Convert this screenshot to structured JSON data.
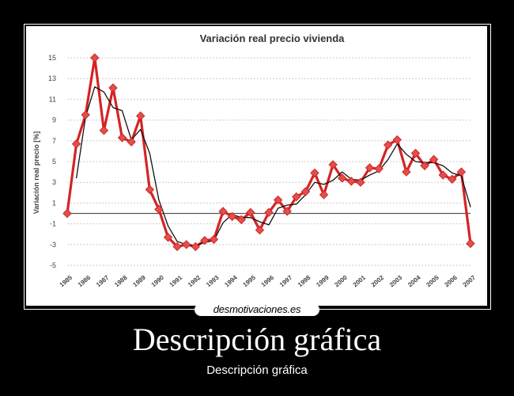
{
  "poster": {
    "site": "desmotivaciones.es",
    "title": "Descripción gráfica",
    "caption": "Descripción gráfica"
  },
  "chart_data": {
    "type": "line",
    "title": "Variación real precio vivienda",
    "ylabel": "Variación real precio [%]",
    "xlabel": "",
    "ylim": [
      -5,
      15
    ],
    "yticks": [
      15,
      13,
      11,
      9,
      7,
      5,
      3,
      1,
      -1,
      -3,
      -5
    ],
    "xlim": [
      1985,
      2007
    ],
    "xticks": [
      "1985",
      "1986",
      "1987",
      "1988",
      "1989",
      "1990",
      "1991",
      "1992",
      "1993",
      "1994",
      "1995",
      "1996",
      "1997",
      "1998",
      "1999",
      "2000",
      "2001",
      "2002",
      "2003",
      "2004",
      "2005",
      "2006",
      "2007"
    ],
    "grid": true,
    "series": [
      {
        "color": "#d42424",
        "marker": "diamond",
        "x": [
          1985,
          1985.5,
          1986,
          1986.5,
          1987,
          1987.5,
          1988,
          1988.5,
          1989,
          1989.5,
          1990,
          1990.5,
          1991,
          1991.5,
          1992,
          1992.5,
          1993,
          1993.5,
          1994,
          1994.5,
          1995,
          1995.5,
          1996,
          1996.5,
          1997,
          1997.5,
          1998,
          1998.5,
          1999,
          1999.5,
          2000,
          2000.5,
          2001,
          2001.5,
          2002,
          2002.5,
          2003,
          2003.5,
          2004,
          2004.5,
          2005,
          2005.5,
          2006,
          2006.5,
          2007
        ],
        "values": [
          0,
          6.7,
          9.5,
          15,
          8,
          12.1,
          7.3,
          6.9,
          9.4,
          2.3,
          0.4,
          -2.3,
          -3.2,
          -3.0,
          -3.2,
          -2.6,
          -2.5,
          0.2,
          -0.3,
          -0.6,
          0.1,
          -1.6,
          0.1,
          1.3,
          0.2,
          1.6,
          2.1,
          3.9,
          1.8,
          4.7,
          3.4,
          3.1,
          3.0,
          4.4,
          4.3,
          6.6,
          7.1,
          4.0,
          5.8,
          4.6,
          5.2,
          3.7,
          3.3,
          4.0,
          -2.9
        ]
      },
      {
        "color": "#111111",
        "marker": "none",
        "x": [
          1985.5,
          1986,
          1986.5,
          1987,
          1987.5,
          1988,
          1988.5,
          1989,
          1989.5,
          1990,
          1990.5,
          1991,
          1991.5,
          1992,
          1992.5,
          1993,
          1993.5,
          1994,
          1994.5,
          1995,
          1995.5,
          1996,
          1996.5,
          1997,
          1997.5,
          1998,
          1998.5,
          1999,
          1999.5,
          2000,
          2000.5,
          2001,
          2001.5,
          2002,
          2002.5,
          2003,
          2003.5,
          2004,
          2004.5,
          2005,
          2005.5,
          2006,
          2006.5,
          2007
        ],
        "values": [
          3.4,
          9.3,
          12.2,
          11.7,
          10.2,
          9.9,
          7.1,
          8.1,
          5.8,
          1.3,
          -1.2,
          -2.7,
          -3.0,
          -3.1,
          -2.8,
          -2.6,
          -0.9,
          -0.1,
          -0.4,
          -0.4,
          -0.8,
          -1.1,
          0.5,
          0.8,
          0.9,
          1.8,
          3.0,
          2.8,
          3.2,
          4.0,
          3.3,
          3.2,
          3.7,
          4.1,
          5.2,
          6.7,
          5.7,
          5.0,
          4.9,
          4.9,
          4.6,
          3.9,
          3.6,
          0.6
        ]
      }
    ]
  }
}
